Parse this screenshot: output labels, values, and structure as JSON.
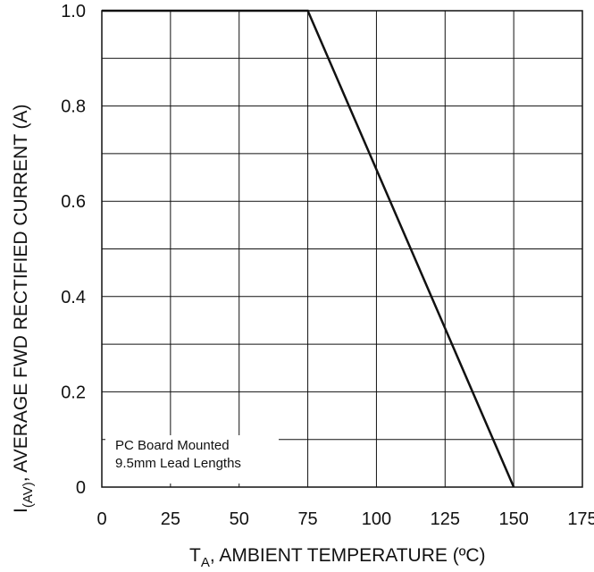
{
  "chart_data": {
    "type": "line",
    "title": "",
    "xlabel": {
      "symbol": "T",
      "subscript": "A",
      "text": ", AMBIENT TEMPERATURE (ºC)"
    },
    "ylabel": {
      "symbol": "I",
      "subscript": "(AV)",
      "text": ", AVERAGE FWD RECTIFIED CURRENT (A)"
    },
    "xlim": [
      0,
      175
    ],
    "ylim": [
      0,
      1.0
    ],
    "x_ticks": [
      "0",
      "25",
      "50",
      "75",
      "100",
      "125",
      "150",
      "175"
    ],
    "y_ticks": [
      "0",
      "0.2",
      "0.4",
      "0.6",
      "0.8",
      "1.0"
    ],
    "grid": true,
    "series": [
      {
        "x": [
          0,
          75,
          150
        ],
        "y": [
          1.0,
          1.0,
          0
        ]
      }
    ],
    "annotation": [
      "PC Board Mounted",
      "9.5mm Lead Lengths"
    ],
    "colors": {
      "line": "#111111",
      "grid": "#111111",
      "background": "#ffffff"
    }
  }
}
